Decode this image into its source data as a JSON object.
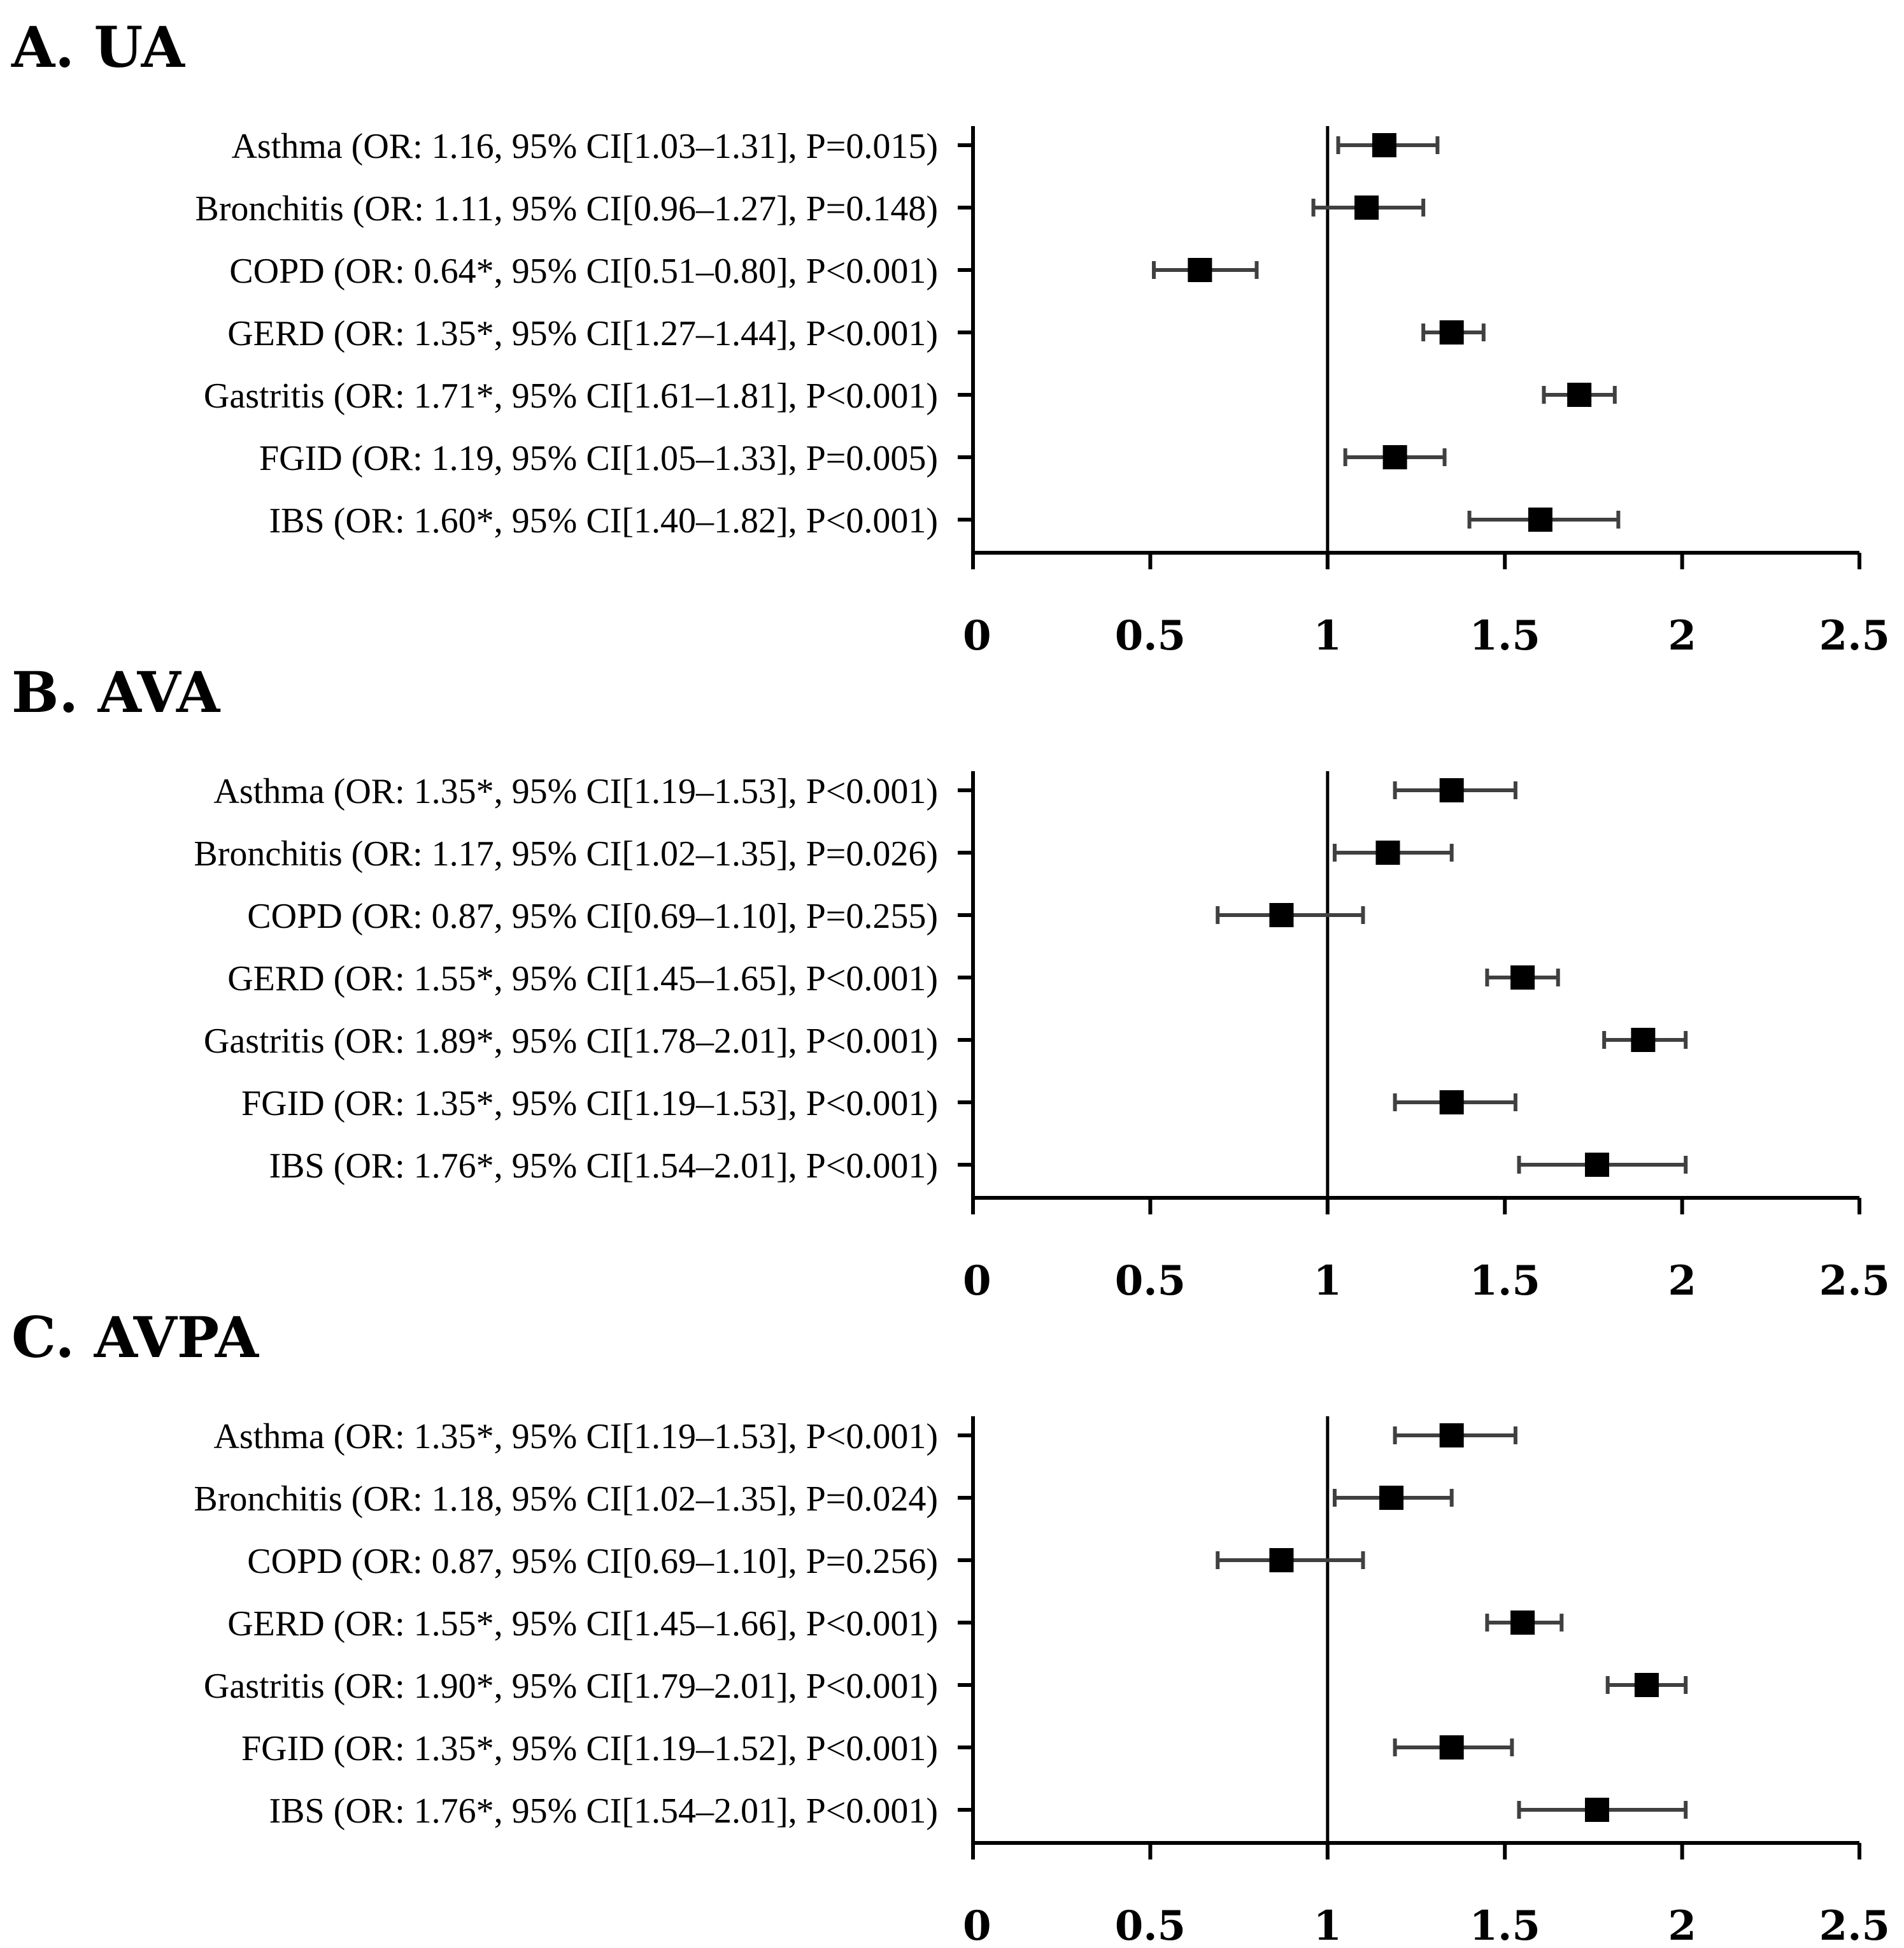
{
  "chart_data": [
    {
      "type": "forest",
      "title": "A. UA",
      "xlim": [
        0,
        2.5
      ],
      "xticks": [
        "0",
        "0.5",
        "1",
        "1.5",
        "2",
        "2.5"
      ],
      "xtick_values": [
        0,
        0.5,
        1,
        1.5,
        2,
        2.5
      ],
      "reference_line": 1,
      "rows": [
        {
          "label": "Asthma (OR: 1.16, 95% CI[1.03–1.31], P=0.015)",
          "or": 1.16,
          "lower": 1.03,
          "upper": 1.31
        },
        {
          "label": "Bronchitis (OR: 1.11, 95% CI[0.96–1.27], P=0.148)",
          "or": 1.11,
          "lower": 0.96,
          "upper": 1.27
        },
        {
          "label": "COPD (OR: 0.64*, 95% CI[0.51–0.80], P<0.001)",
          "or": 0.64,
          "lower": 0.51,
          "upper": 0.8
        },
        {
          "label": "GERD (OR: 1.35*, 95% CI[1.27–1.44], P<0.001)",
          "or": 1.35,
          "lower": 1.27,
          "upper": 1.44
        },
        {
          "label": "Gastritis (OR: 1.71*, 95% CI[1.61–1.81], P<0.001)",
          "or": 1.71,
          "lower": 1.61,
          "upper": 1.81
        },
        {
          "label": "FGID (OR: 1.19, 95% CI[1.05–1.33], P=0.005)",
          "or": 1.19,
          "lower": 1.05,
          "upper": 1.33
        },
        {
          "label": "IBS (OR: 1.60*, 95% CI[1.40–1.82], P<0.001)",
          "or": 1.6,
          "lower": 1.4,
          "upper": 1.82
        }
      ]
    },
    {
      "type": "forest",
      "title": "B. AVA",
      "xlim": [
        0,
        2.5
      ],
      "xticks": [
        "0",
        "0.5",
        "1",
        "1.5",
        "2",
        "2.5"
      ],
      "xtick_values": [
        0,
        0.5,
        1,
        1.5,
        2,
        2.5
      ],
      "reference_line": 1,
      "rows": [
        {
          "label": "Asthma (OR: 1.35*, 95% CI[1.19–1.53], P<0.001)",
          "or": 1.35,
          "lower": 1.19,
          "upper": 1.53
        },
        {
          "label": "Bronchitis (OR: 1.17, 95% CI[1.02–1.35], P=0.026)",
          "or": 1.17,
          "lower": 1.02,
          "upper": 1.35
        },
        {
          "label": "COPD (OR: 0.87, 95% CI[0.69–1.10], P=0.255)",
          "or": 0.87,
          "lower": 0.69,
          "upper": 1.1
        },
        {
          "label": "GERD (OR: 1.55*, 95% CI[1.45–1.65], P<0.001)",
          "or": 1.55,
          "lower": 1.45,
          "upper": 1.65
        },
        {
          "label": "Gastritis (OR: 1.89*, 95% CI[1.78–2.01], P<0.001)",
          "or": 1.89,
          "lower": 1.78,
          "upper": 2.01
        },
        {
          "label": "FGID (OR: 1.35*, 95% CI[1.19–1.53], P<0.001)",
          "or": 1.35,
          "lower": 1.19,
          "upper": 1.53
        },
        {
          "label": "IBS (OR: 1.76*, 95% CI[1.54–2.01], P<0.001)",
          "or": 1.76,
          "lower": 1.54,
          "upper": 2.01
        }
      ]
    },
    {
      "type": "forest",
      "title": "C. AVPA",
      "xlim": [
        0,
        2.5
      ],
      "xticks": [
        "0",
        "0.5",
        "1",
        "1.5",
        "2",
        "2.5"
      ],
      "xtick_values": [
        0,
        0.5,
        1,
        1.5,
        2,
        2.5
      ],
      "reference_line": 1,
      "rows": [
        {
          "label": "Asthma (OR: 1.35*, 95% CI[1.19–1.53], P<0.001)",
          "or": 1.35,
          "lower": 1.19,
          "upper": 1.53
        },
        {
          "label": "Bronchitis (OR: 1.18, 95% CI[1.02–1.35], P=0.024)",
          "or": 1.18,
          "lower": 1.02,
          "upper": 1.35
        },
        {
          "label": "COPD (OR: 0.87, 95% CI[0.69–1.10], P=0.256)",
          "or": 0.87,
          "lower": 0.69,
          "upper": 1.1
        },
        {
          "label": "GERD (OR: 1.55*, 95% CI[1.45–1.66], P<0.001)",
          "or": 1.55,
          "lower": 1.45,
          "upper": 1.66
        },
        {
          "label": "Gastritis (OR: 1.90*, 95% CI[1.79–2.01], P<0.001)",
          "or": 1.9,
          "lower": 1.79,
          "upper": 2.01
        },
        {
          "label": "FGID (OR: 1.35*, 95% CI[1.19–1.52], P<0.001)",
          "or": 1.35,
          "lower": 1.19,
          "upper": 1.52
        },
        {
          "label": "IBS (OR: 1.76*, 95% CI[1.54–2.01], P<0.001)",
          "or": 1.76,
          "lower": 1.54,
          "upper": 2.01
        }
      ]
    }
  ],
  "colors": {
    "marker": "#000000",
    "ci_line": "#404040",
    "axis": "#000000"
  }
}
